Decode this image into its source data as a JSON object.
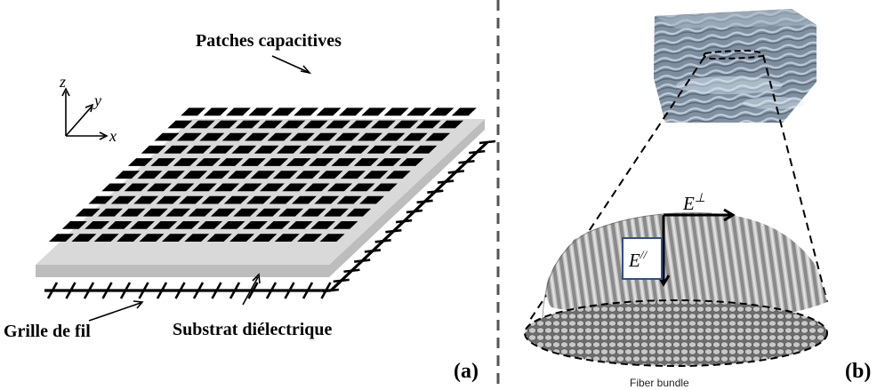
{
  "panel_a": {
    "label": "(a)",
    "axes": {
      "z": "z",
      "y": "y",
      "x": "x"
    },
    "labels": {
      "patches": "Patches capacitives",
      "grid": "Grille de fil",
      "substrate": "Substrat diélectrique"
    }
  },
  "panel_b": {
    "label": "(b)",
    "caption": "Fiber bundle",
    "field_perp": "E",
    "field_perp_sup": "⊥",
    "field_par": "E",
    "field_par_sup": "//"
  }
}
